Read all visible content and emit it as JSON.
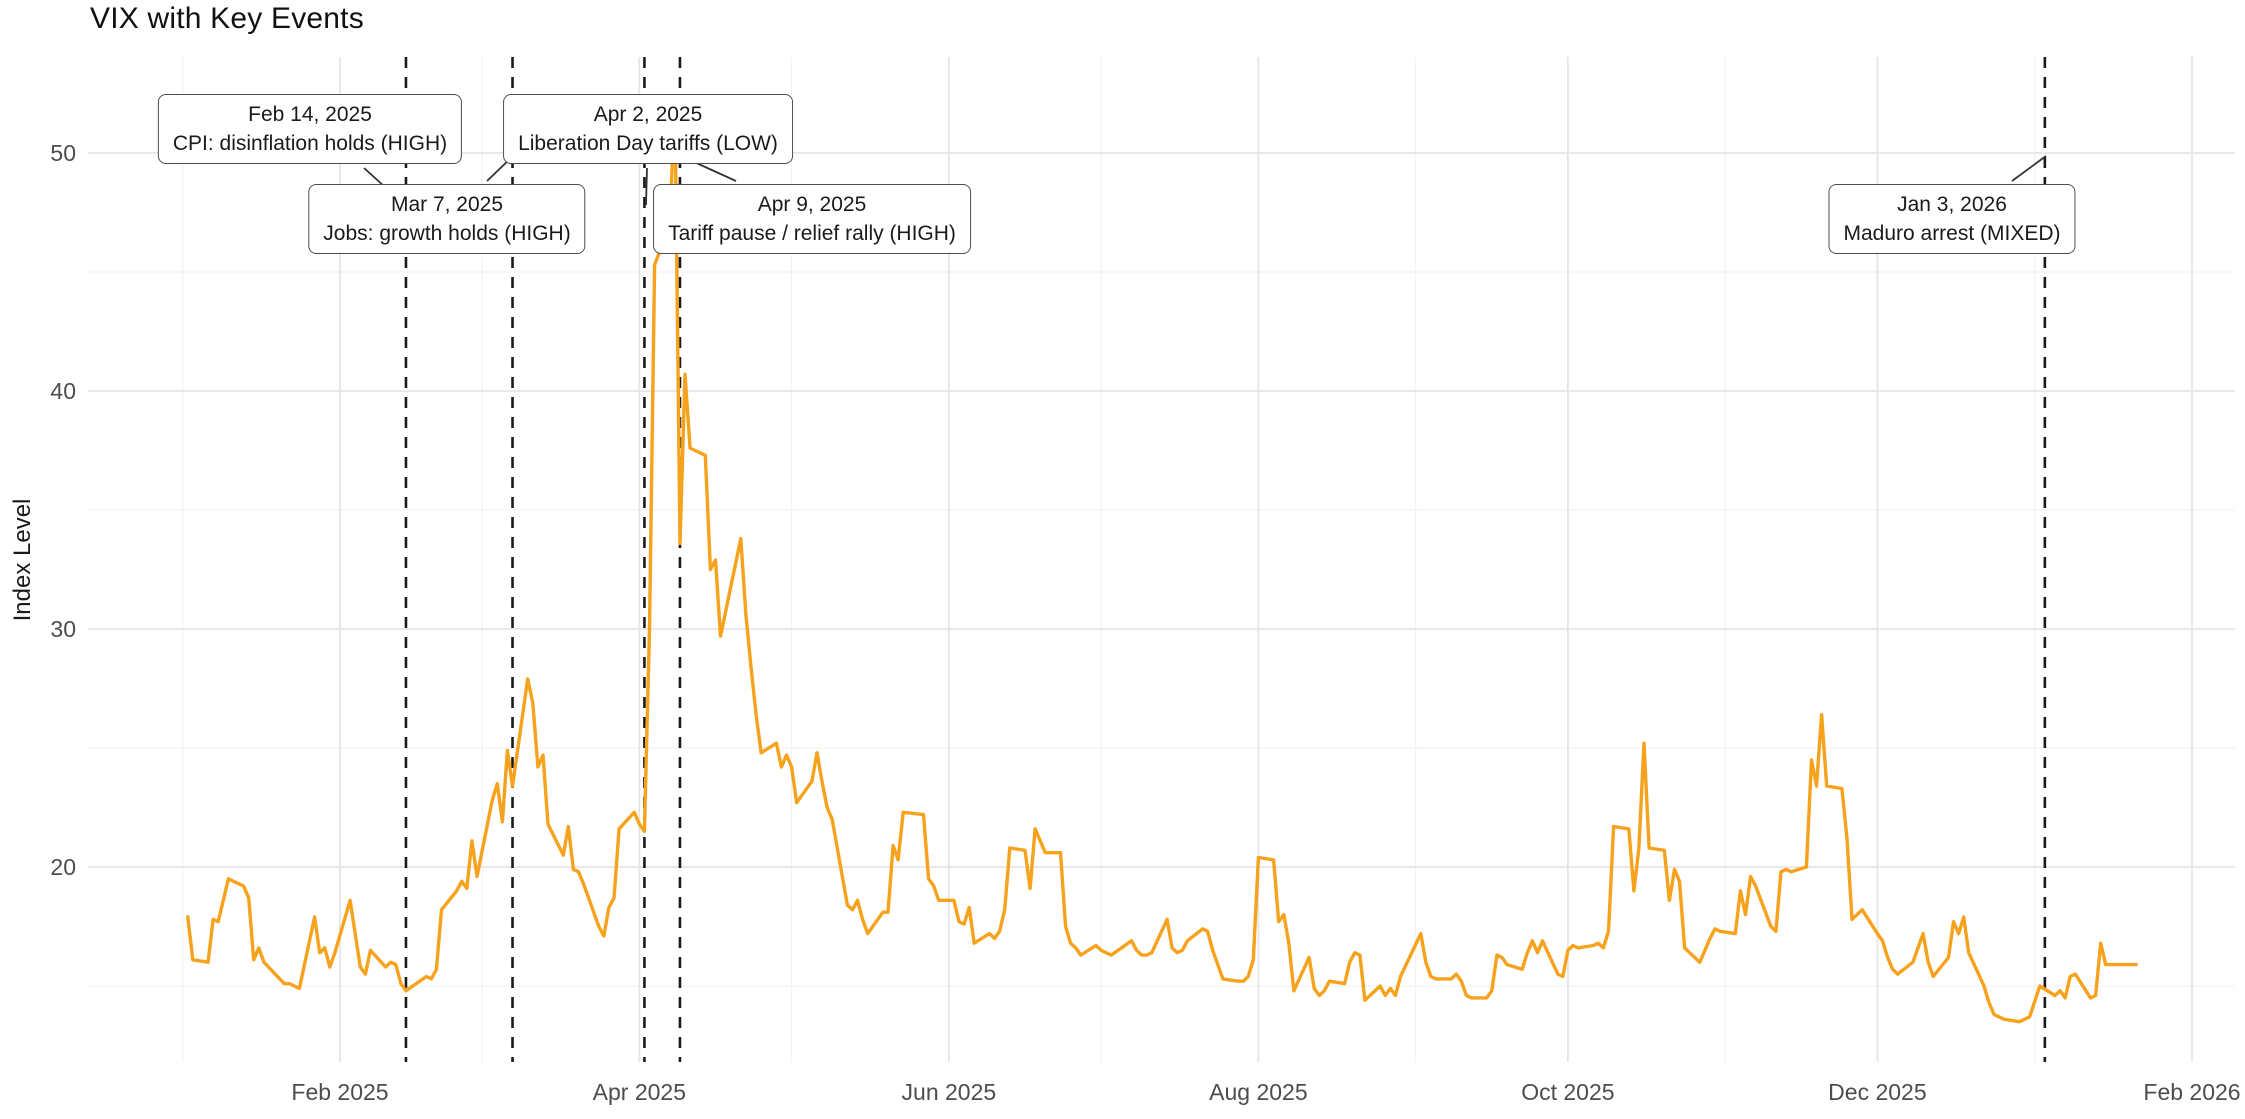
{
  "title": "VIX with Key Events",
  "colors": {
    "line": "#F6A21D",
    "event_line": "#1A1A1A",
    "grid_major": "#E5E5E5",
    "grid_minor": "#F2F2F2",
    "axis_text": "#4D4D4D",
    "label_text": "#1A1A1A"
  },
  "chart_data": {
    "type": "line",
    "title": "VIX with Key Events",
    "xlabel": "",
    "ylabel": "Index Level",
    "ylim": [
      11.8,
      54
    ],
    "grid": "on",
    "legend_position": "none",
    "y_ticks": [
      20,
      30,
      40,
      50
    ],
    "y_minor_gridlines": [
      15,
      25,
      35,
      45
    ],
    "x_ticks": [
      {
        "label": "Feb 2025",
        "date": "2025-02-01"
      },
      {
        "label": "Apr 2025",
        "date": "2025-04-01"
      },
      {
        "label": "Jun 2025",
        "date": "2025-06-01"
      },
      {
        "label": "Aug 2025",
        "date": "2025-08-01"
      },
      {
        "label": "Oct 2025",
        "date": "2025-10-01"
      },
      {
        "label": "Dec 2025",
        "date": "2025-12-01"
      },
      {
        "label": "Feb 2026",
        "date": "2026-02-01"
      }
    ],
    "x_minor_gridlines": [
      "2025-01-01",
      "2025-03-01",
      "2025-05-01",
      "2025-07-01",
      "2025-09-01",
      "2025-11-01",
      "2026-01-01"
    ],
    "events": [
      {
        "date": "2025-02-14",
        "date_label": "Feb 14, 2025",
        "text": "CPI: disinflation holds (HIGH)"
      },
      {
        "date": "2025-03-07",
        "date_label": "Mar 7, 2025",
        "text": "Jobs: growth holds (HIGH)"
      },
      {
        "date": "2025-04-02",
        "date_label": "Apr 2, 2025",
        "text": "Liberation Day tariffs (LOW)"
      },
      {
        "date": "2025-04-09",
        "date_label": "Apr 9, 2025",
        "text": "Tariff pause / relief rally (HIGH)"
      },
      {
        "date": "2026-01-03",
        "date_label": "Jan 3, 2026",
        "text": "Maduro arrest (MIXED)"
      }
    ],
    "series": [
      {
        "name": "VIX",
        "color": "#F6A21D",
        "points": [
          [
            "2025-01-02",
            17.9
          ],
          [
            "2025-01-03",
            16.1
          ],
          [
            "2025-01-06",
            16.0
          ],
          [
            "2025-01-07",
            17.8
          ],
          [
            "2025-01-08",
            17.7
          ],
          [
            "2025-01-10",
            19.5
          ],
          [
            "2025-01-13",
            19.2
          ],
          [
            "2025-01-14",
            18.7
          ],
          [
            "2025-01-15",
            16.1
          ],
          [
            "2025-01-16",
            16.6
          ],
          [
            "2025-01-17",
            16.0
          ],
          [
            "2025-01-21",
            15.1
          ],
          [
            "2025-01-22",
            15.1
          ],
          [
            "2025-01-23",
            15.0
          ],
          [
            "2025-01-24",
            14.9
          ],
          [
            "2025-01-27",
            17.9
          ],
          [
            "2025-01-28",
            16.4
          ],
          [
            "2025-01-29",
            16.6
          ],
          [
            "2025-01-30",
            15.8
          ],
          [
            "2025-01-31",
            16.4
          ],
          [
            "2025-02-03",
            18.6
          ],
          [
            "2025-02-04",
            17.2
          ],
          [
            "2025-02-05",
            15.8
          ],
          [
            "2025-02-06",
            15.5
          ],
          [
            "2025-02-07",
            16.5
          ],
          [
            "2025-02-10",
            15.8
          ],
          [
            "2025-02-11",
            16.0
          ],
          [
            "2025-02-12",
            15.9
          ],
          [
            "2025-02-13",
            15.1
          ],
          [
            "2025-02-14",
            14.8
          ],
          [
            "2025-02-18",
            15.4
          ],
          [
            "2025-02-19",
            15.3
          ],
          [
            "2025-02-20",
            15.7
          ],
          [
            "2025-02-21",
            18.2
          ],
          [
            "2025-02-24",
            19.0
          ],
          [
            "2025-02-25",
            19.4
          ],
          [
            "2025-02-26",
            19.1
          ],
          [
            "2025-02-27",
            21.1
          ],
          [
            "2025-02-28",
            19.6
          ],
          [
            "2025-03-03",
            22.8
          ],
          [
            "2025-03-04",
            23.5
          ],
          [
            "2025-03-05",
            21.9
          ],
          [
            "2025-03-06",
            24.9
          ],
          [
            "2025-03-07",
            23.4
          ],
          [
            "2025-03-10",
            27.9
          ],
          [
            "2025-03-11",
            26.9
          ],
          [
            "2025-03-12",
            24.2
          ],
          [
            "2025-03-13",
            24.7
          ],
          [
            "2025-03-14",
            21.8
          ],
          [
            "2025-03-17",
            20.5
          ],
          [
            "2025-03-18",
            21.7
          ],
          [
            "2025-03-19",
            19.9
          ],
          [
            "2025-03-20",
            19.8
          ],
          [
            "2025-03-21",
            19.3
          ],
          [
            "2025-03-24",
            17.5
          ],
          [
            "2025-03-25",
            17.1
          ],
          [
            "2025-03-26",
            18.3
          ],
          [
            "2025-03-27",
            18.7
          ],
          [
            "2025-03-28",
            21.6
          ],
          [
            "2025-03-31",
            22.3
          ],
          [
            "2025-04-01",
            21.8
          ],
          [
            "2025-04-02",
            21.5
          ],
          [
            "2025-04-03",
            30.0
          ],
          [
            "2025-04-04",
            45.3
          ],
          [
            "2025-04-07",
            47.0
          ],
          [
            "2025-04-08",
            52.3
          ],
          [
            "2025-04-09",
            33.6
          ],
          [
            "2025-04-10",
            40.7
          ],
          [
            "2025-04-11",
            37.6
          ],
          [
            "2025-04-14",
            37.3
          ],
          [
            "2025-04-15",
            32.5
          ],
          [
            "2025-04-16",
            32.9
          ],
          [
            "2025-04-17",
            29.7
          ],
          [
            "2025-04-21",
            33.8
          ],
          [
            "2025-04-22",
            30.6
          ],
          [
            "2025-04-23",
            28.4
          ],
          [
            "2025-04-24",
            26.4
          ],
          [
            "2025-04-25",
            24.8
          ],
          [
            "2025-04-28",
            25.2
          ],
          [
            "2025-04-29",
            24.2
          ],
          [
            "2025-04-30",
            24.7
          ],
          [
            "2025-05-01",
            24.2
          ],
          [
            "2025-05-02",
            22.7
          ],
          [
            "2025-05-05",
            23.6
          ],
          [
            "2025-05-06",
            24.8
          ],
          [
            "2025-05-07",
            23.6
          ],
          [
            "2025-05-08",
            22.5
          ],
          [
            "2025-05-09",
            22.0
          ],
          [
            "2025-05-12",
            18.4
          ],
          [
            "2025-05-13",
            18.2
          ],
          [
            "2025-05-14",
            18.6
          ],
          [
            "2025-05-15",
            17.8
          ],
          [
            "2025-05-16",
            17.2
          ],
          [
            "2025-05-19",
            18.1
          ],
          [
            "2025-05-20",
            18.1
          ],
          [
            "2025-05-21",
            20.9
          ],
          [
            "2025-05-22",
            20.3
          ],
          [
            "2025-05-23",
            22.3
          ],
          [
            "2025-05-27",
            22.2
          ],
          [
            "2025-05-28",
            19.5
          ],
          [
            "2025-05-29",
            19.2
          ],
          [
            "2025-05-30",
            18.6
          ],
          [
            "2025-06-02",
            18.6
          ],
          [
            "2025-06-03",
            17.7
          ],
          [
            "2025-06-04",
            17.6
          ],
          [
            "2025-06-05",
            18.3
          ],
          [
            "2025-06-06",
            16.8
          ],
          [
            "2025-06-09",
            17.2
          ],
          [
            "2025-06-10",
            17.0
          ],
          [
            "2025-06-11",
            17.3
          ],
          [
            "2025-06-12",
            18.2
          ],
          [
            "2025-06-13",
            20.8
          ],
          [
            "2025-06-16",
            20.7
          ],
          [
            "2025-06-17",
            19.1
          ],
          [
            "2025-06-18",
            21.6
          ],
          [
            "2025-06-20",
            20.6
          ],
          [
            "2025-06-23",
            20.6
          ],
          [
            "2025-06-24",
            17.5
          ],
          [
            "2025-06-25",
            16.8
          ],
          [
            "2025-06-26",
            16.6
          ],
          [
            "2025-06-27",
            16.3
          ],
          [
            "2025-06-30",
            16.7
          ],
          [
            "2025-07-01",
            16.5
          ],
          [
            "2025-07-02",
            16.4
          ],
          [
            "2025-07-03",
            16.3
          ],
          [
            "2025-07-07",
            16.9
          ],
          [
            "2025-07-08",
            16.5
          ],
          [
            "2025-07-09",
            16.3
          ],
          [
            "2025-07-10",
            16.3
          ],
          [
            "2025-07-11",
            16.4
          ],
          [
            "2025-07-14",
            17.8
          ],
          [
            "2025-07-15",
            16.6
          ],
          [
            "2025-07-16",
            16.4
          ],
          [
            "2025-07-17",
            16.5
          ],
          [
            "2025-07-18",
            16.9
          ],
          [
            "2025-07-21",
            17.4
          ],
          [
            "2025-07-22",
            17.3
          ],
          [
            "2025-07-23",
            16.5
          ],
          [
            "2025-07-24",
            15.9
          ],
          [
            "2025-07-25",
            15.3
          ],
          [
            "2025-07-28",
            15.2
          ],
          [
            "2025-07-29",
            15.2
          ],
          [
            "2025-07-30",
            15.4
          ],
          [
            "2025-07-31",
            16.1
          ],
          [
            "2025-08-01",
            20.4
          ],
          [
            "2025-08-04",
            20.3
          ],
          [
            "2025-08-05",
            17.7
          ],
          [
            "2025-08-06",
            18.0
          ],
          [
            "2025-08-07",
            16.8
          ],
          [
            "2025-08-08",
            14.8
          ],
          [
            "2025-08-11",
            16.2
          ],
          [
            "2025-08-12",
            14.9
          ],
          [
            "2025-08-13",
            14.6
          ],
          [
            "2025-08-14",
            14.8
          ],
          [
            "2025-08-15",
            15.2
          ],
          [
            "2025-08-18",
            15.1
          ],
          [
            "2025-08-19",
            16.0
          ],
          [
            "2025-08-20",
            16.4
          ],
          [
            "2025-08-21",
            16.3
          ],
          [
            "2025-08-22",
            14.4
          ],
          [
            "2025-08-25",
            15.0
          ],
          [
            "2025-08-26",
            14.6
          ],
          [
            "2025-08-27",
            14.9
          ],
          [
            "2025-08-28",
            14.6
          ],
          [
            "2025-08-29",
            15.4
          ],
          [
            "2025-09-02",
            17.2
          ],
          [
            "2025-09-03",
            16.0
          ],
          [
            "2025-09-04",
            15.4
          ],
          [
            "2025-09-05",
            15.3
          ],
          [
            "2025-09-08",
            15.3
          ],
          [
            "2025-09-09",
            15.5
          ],
          [
            "2025-09-10",
            15.2
          ],
          [
            "2025-09-11",
            14.6
          ],
          [
            "2025-09-12",
            14.5
          ],
          [
            "2025-09-15",
            14.5
          ],
          [
            "2025-09-16",
            14.8
          ],
          [
            "2025-09-17",
            16.3
          ],
          [
            "2025-09-18",
            16.2
          ],
          [
            "2025-09-19",
            15.9
          ],
          [
            "2025-09-22",
            15.7
          ],
          [
            "2025-09-23",
            16.4
          ],
          [
            "2025-09-24",
            16.9
          ],
          [
            "2025-09-25",
            16.4
          ],
          [
            "2025-09-26",
            16.9
          ],
          [
            "2025-09-29",
            15.5
          ],
          [
            "2025-09-30",
            15.4
          ],
          [
            "2025-10-01",
            16.5
          ],
          [
            "2025-10-02",
            16.7
          ],
          [
            "2025-10-03",
            16.6
          ],
          [
            "2025-10-06",
            16.7
          ],
          [
            "2025-10-07",
            16.8
          ],
          [
            "2025-10-08",
            16.6
          ],
          [
            "2025-10-09",
            17.3
          ],
          [
            "2025-10-10",
            21.7
          ],
          [
            "2025-10-13",
            21.6
          ],
          [
            "2025-10-14",
            19.0
          ],
          [
            "2025-10-15",
            20.8
          ],
          [
            "2025-10-16",
            25.2
          ],
          [
            "2025-10-17",
            20.8
          ],
          [
            "2025-10-20",
            20.7
          ],
          [
            "2025-10-21",
            18.6
          ],
          [
            "2025-10-22",
            19.9
          ],
          [
            "2025-10-23",
            19.4
          ],
          [
            "2025-10-24",
            16.6
          ],
          [
            "2025-10-27",
            16.0
          ],
          [
            "2025-10-28",
            16.5
          ],
          [
            "2025-10-29",
            17.0
          ],
          [
            "2025-10-30",
            17.4
          ],
          [
            "2025-10-31",
            17.3
          ],
          [
            "2025-11-03",
            17.2
          ],
          [
            "2025-11-04",
            19.0
          ],
          [
            "2025-11-05",
            18.0
          ],
          [
            "2025-11-06",
            19.6
          ],
          [
            "2025-11-07",
            19.2
          ],
          [
            "2025-11-10",
            17.5
          ],
          [
            "2025-11-11",
            17.3
          ],
          [
            "2025-11-12",
            19.8
          ],
          [
            "2025-11-13",
            19.9
          ],
          [
            "2025-11-14",
            19.8
          ],
          [
            "2025-11-17",
            20.0
          ],
          [
            "2025-11-18",
            24.5
          ],
          [
            "2025-11-19",
            23.4
          ],
          [
            "2025-11-20",
            26.4
          ],
          [
            "2025-11-21",
            23.4
          ],
          [
            "2025-11-24",
            23.3
          ],
          [
            "2025-11-25",
            21.2
          ],
          [
            "2025-11-26",
            17.8
          ],
          [
            "2025-11-28",
            18.2
          ],
          [
            "2025-12-01",
            17.2
          ],
          [
            "2025-12-02",
            16.9
          ],
          [
            "2025-12-03",
            16.2
          ],
          [
            "2025-12-04",
            15.7
          ],
          [
            "2025-12-05",
            15.5
          ],
          [
            "2025-12-08",
            16.0
          ],
          [
            "2025-12-09",
            16.6
          ],
          [
            "2025-12-10",
            17.2
          ],
          [
            "2025-12-11",
            16.0
          ],
          [
            "2025-12-12",
            15.4
          ],
          [
            "2025-12-15",
            16.2
          ],
          [
            "2025-12-16",
            17.7
          ],
          [
            "2025-12-17",
            17.2
          ],
          [
            "2025-12-18",
            17.9
          ],
          [
            "2025-12-19",
            16.4
          ],
          [
            "2025-12-22",
            15.0
          ],
          [
            "2025-12-23",
            14.3
          ],
          [
            "2025-12-24",
            13.8
          ],
          [
            "2025-12-26",
            13.6
          ],
          [
            "2025-12-29",
            13.5
          ],
          [
            "2025-12-30",
            13.6
          ],
          [
            "2025-12-31",
            13.7
          ],
          [
            "2026-01-02",
            15.0
          ],
          [
            "2026-01-05",
            14.6
          ],
          [
            "2026-01-06",
            14.8
          ],
          [
            "2026-01-07",
            14.5
          ],
          [
            "2026-01-08",
            15.4
          ],
          [
            "2026-01-09",
            15.5
          ],
          [
            "2026-01-12",
            14.5
          ],
          [
            "2026-01-13",
            14.6
          ],
          [
            "2026-01-14",
            16.8
          ],
          [
            "2026-01-15",
            15.9
          ],
          [
            "2026-01-16",
            15.9
          ],
          [
            "2026-01-20",
            15.9
          ],
          [
            "2026-01-21",
            15.9
          ]
        ]
      }
    ]
  }
}
